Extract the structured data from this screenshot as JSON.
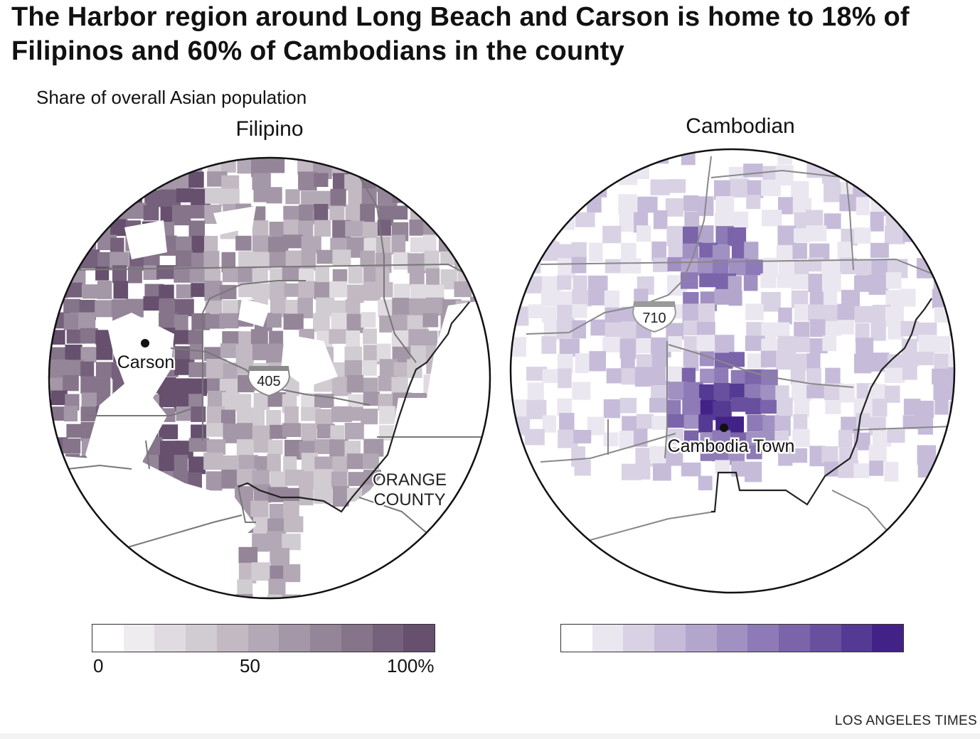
{
  "headline": "The Harbor region around Long Beach and Carson is home to 18% of Filipinos and 60% of Cambodians in the county",
  "subtitle": "Share of overall Asian population",
  "maps": {
    "left": {
      "title": "Filipino",
      "place_label": "Carson",
      "freeway_shield": "405",
      "region_label_line1": "ORANGE",
      "region_label_line2": "COUNTY",
      "color_ramp": [
        "#ffffff",
        "#efecef",
        "#e0dbe0",
        "#d1cbd2",
        "#c2b9c3",
        "#b3a8b5",
        "#a497a7",
        "#948598",
        "#85748a",
        "#76617c",
        "#66506e"
      ]
    },
    "right": {
      "title": "Cambodian",
      "place_label": "Cambodia Town",
      "freeway_shield": "710",
      "color_ramp": [
        "#ffffff",
        "#ebe7f0",
        "#d9d2e4",
        "#c6bcd9",
        "#b3a6cd",
        "#a190c2",
        "#8e7ab6",
        "#7b64aa",
        "#68509f",
        "#553a93",
        "#432288"
      ]
    }
  },
  "legend": {
    "tick_0": "0",
    "tick_50": "50",
    "tick_100": "100%"
  },
  "credit": "LOS ANGELES TIMES"
}
